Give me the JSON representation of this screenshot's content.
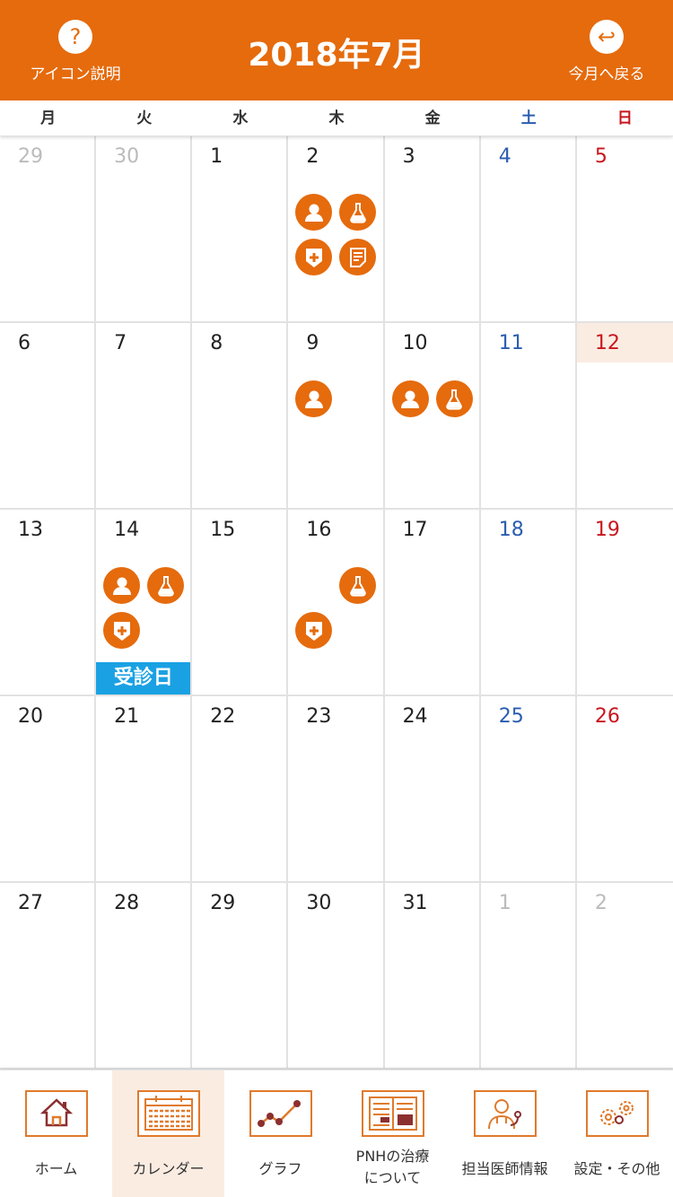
{
  "header": {
    "title": "2018年7月",
    "help_label": "アイコン説明",
    "help_glyph": "?",
    "back_label": "今月へ戻る",
    "back_glyph": "↩",
    "color": "#e56b0d"
  },
  "weekdays": [
    "月",
    "火",
    "水",
    "木",
    "金",
    "土",
    "日"
  ],
  "weeks": [
    [
      {
        "day": "29",
        "muted": true
      },
      {
        "day": "30",
        "muted": true
      },
      {
        "day": "1"
      },
      {
        "day": "2",
        "icons": [
          "person-icon",
          "flask-icon",
          "shield-plus-icon",
          "memo-icon"
        ]
      },
      {
        "day": "3"
      },
      {
        "day": "4"
      },
      {
        "day": "5"
      }
    ],
    [
      {
        "day": "6"
      },
      {
        "day": "7"
      },
      {
        "day": "8"
      },
      {
        "day": "9",
        "icons": [
          "person-icon"
        ]
      },
      {
        "day": "10",
        "icons": [
          "person-icon",
          "flask-icon"
        ]
      },
      {
        "day": "11"
      },
      {
        "day": "12",
        "today": true
      }
    ],
    [
      {
        "day": "13"
      },
      {
        "day": "14",
        "icons": [
          "person-icon",
          "flask-icon",
          "shield-plus-icon"
        ],
        "visit": "受診日"
      },
      {
        "day": "15"
      },
      {
        "day": "16",
        "icons": [
          "blank",
          "flask-icon",
          "shield-plus-icon"
        ]
      },
      {
        "day": "17"
      },
      {
        "day": "18"
      },
      {
        "day": "19"
      }
    ],
    [
      {
        "day": "20"
      },
      {
        "day": "21"
      },
      {
        "day": "22"
      },
      {
        "day": "23"
      },
      {
        "day": "24"
      },
      {
        "day": "25"
      },
      {
        "day": "26"
      }
    ],
    [
      {
        "day": "27"
      },
      {
        "day": "28"
      },
      {
        "day": "29"
      },
      {
        "day": "30"
      },
      {
        "day": "31"
      },
      {
        "day": "1",
        "muted": true
      },
      {
        "day": "2",
        "muted": true
      }
    ]
  ],
  "nav": [
    {
      "label": "ホーム",
      "icon": "home-icon"
    },
    {
      "label": "カレンダー",
      "icon": "calendar-icon",
      "active": true
    },
    {
      "label": "グラフ",
      "icon": "graph-icon"
    },
    {
      "label": "PNHの治療\nについて",
      "icon": "book-icon"
    },
    {
      "label": "担当医師情報",
      "icon": "doctor-icon"
    },
    {
      "label": "設定・その他",
      "icon": "gears-icon"
    }
  ],
  "colors": {
    "accent": "#e56b0d",
    "saturday": "#2a5db0",
    "sunday": "#c8161d",
    "visit": "#1aa1e3",
    "today_bg": "#fbece2"
  }
}
